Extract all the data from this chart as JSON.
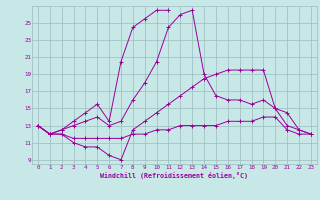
{
  "xlabel": "Windchill (Refroidissement éolien,°C)",
  "x": [
    0,
    1,
    2,
    3,
    4,
    5,
    6,
    7,
    8,
    9,
    10,
    11,
    12,
    13,
    14,
    15,
    16,
    17,
    18,
    19,
    20,
    21,
    22,
    23
  ],
  "line_peak": [
    13.0,
    12.0,
    12.5,
    13.5,
    14.5,
    15.5,
    13.5,
    20.5,
    24.5,
    25.5,
    26.5,
    26.5,
    null,
    null,
    null,
    null,
    null,
    null,
    null,
    null,
    null,
    null,
    null,
    null
  ],
  "line_mid": [
    13.0,
    12.0,
    12.5,
    13.0,
    13.5,
    14.0,
    13.0,
    13.5,
    16.0,
    18.0,
    20.5,
    24.5,
    26.0,
    26.5,
    19.0,
    16.5,
    16.0,
    16.0,
    15.5,
    16.0,
    15.0,
    14.5,
    12.5,
    12.0
  ],
  "line_low": [
    13.0,
    12.0,
    12.0,
    11.0,
    10.5,
    10.5,
    9.5,
    9.0,
    12.5,
    13.5,
    14.5,
    15.5,
    16.5,
    17.5,
    18.5,
    19.0,
    19.5,
    19.5,
    19.5,
    19.5,
    15.0,
    13.0,
    12.5,
    12.0
  ],
  "line_flat": [
    13.0,
    12.0,
    12.0,
    11.5,
    11.5,
    11.5,
    11.5,
    11.5,
    12.0,
    12.0,
    12.5,
    12.5,
    13.0,
    13.0,
    13.0,
    13.0,
    13.5,
    13.5,
    13.5,
    14.0,
    14.0,
    12.5,
    12.0,
    12.0
  ],
  "line_color": "#990099",
  "bg_color": "#c8e8e8",
  "grid_color": "#9bbcbc",
  "ylim": [
    8.5,
    27.0
  ],
  "yticks": [
    9,
    11,
    13,
    15,
    17,
    19,
    21,
    23,
    25
  ],
  "xlim": [
    -0.5,
    23.5
  ],
  "xticks": [
    0,
    1,
    2,
    3,
    4,
    5,
    6,
    7,
    8,
    9,
    10,
    11,
    12,
    13,
    14,
    15,
    16,
    17,
    18,
    19,
    20,
    21,
    22,
    23
  ]
}
